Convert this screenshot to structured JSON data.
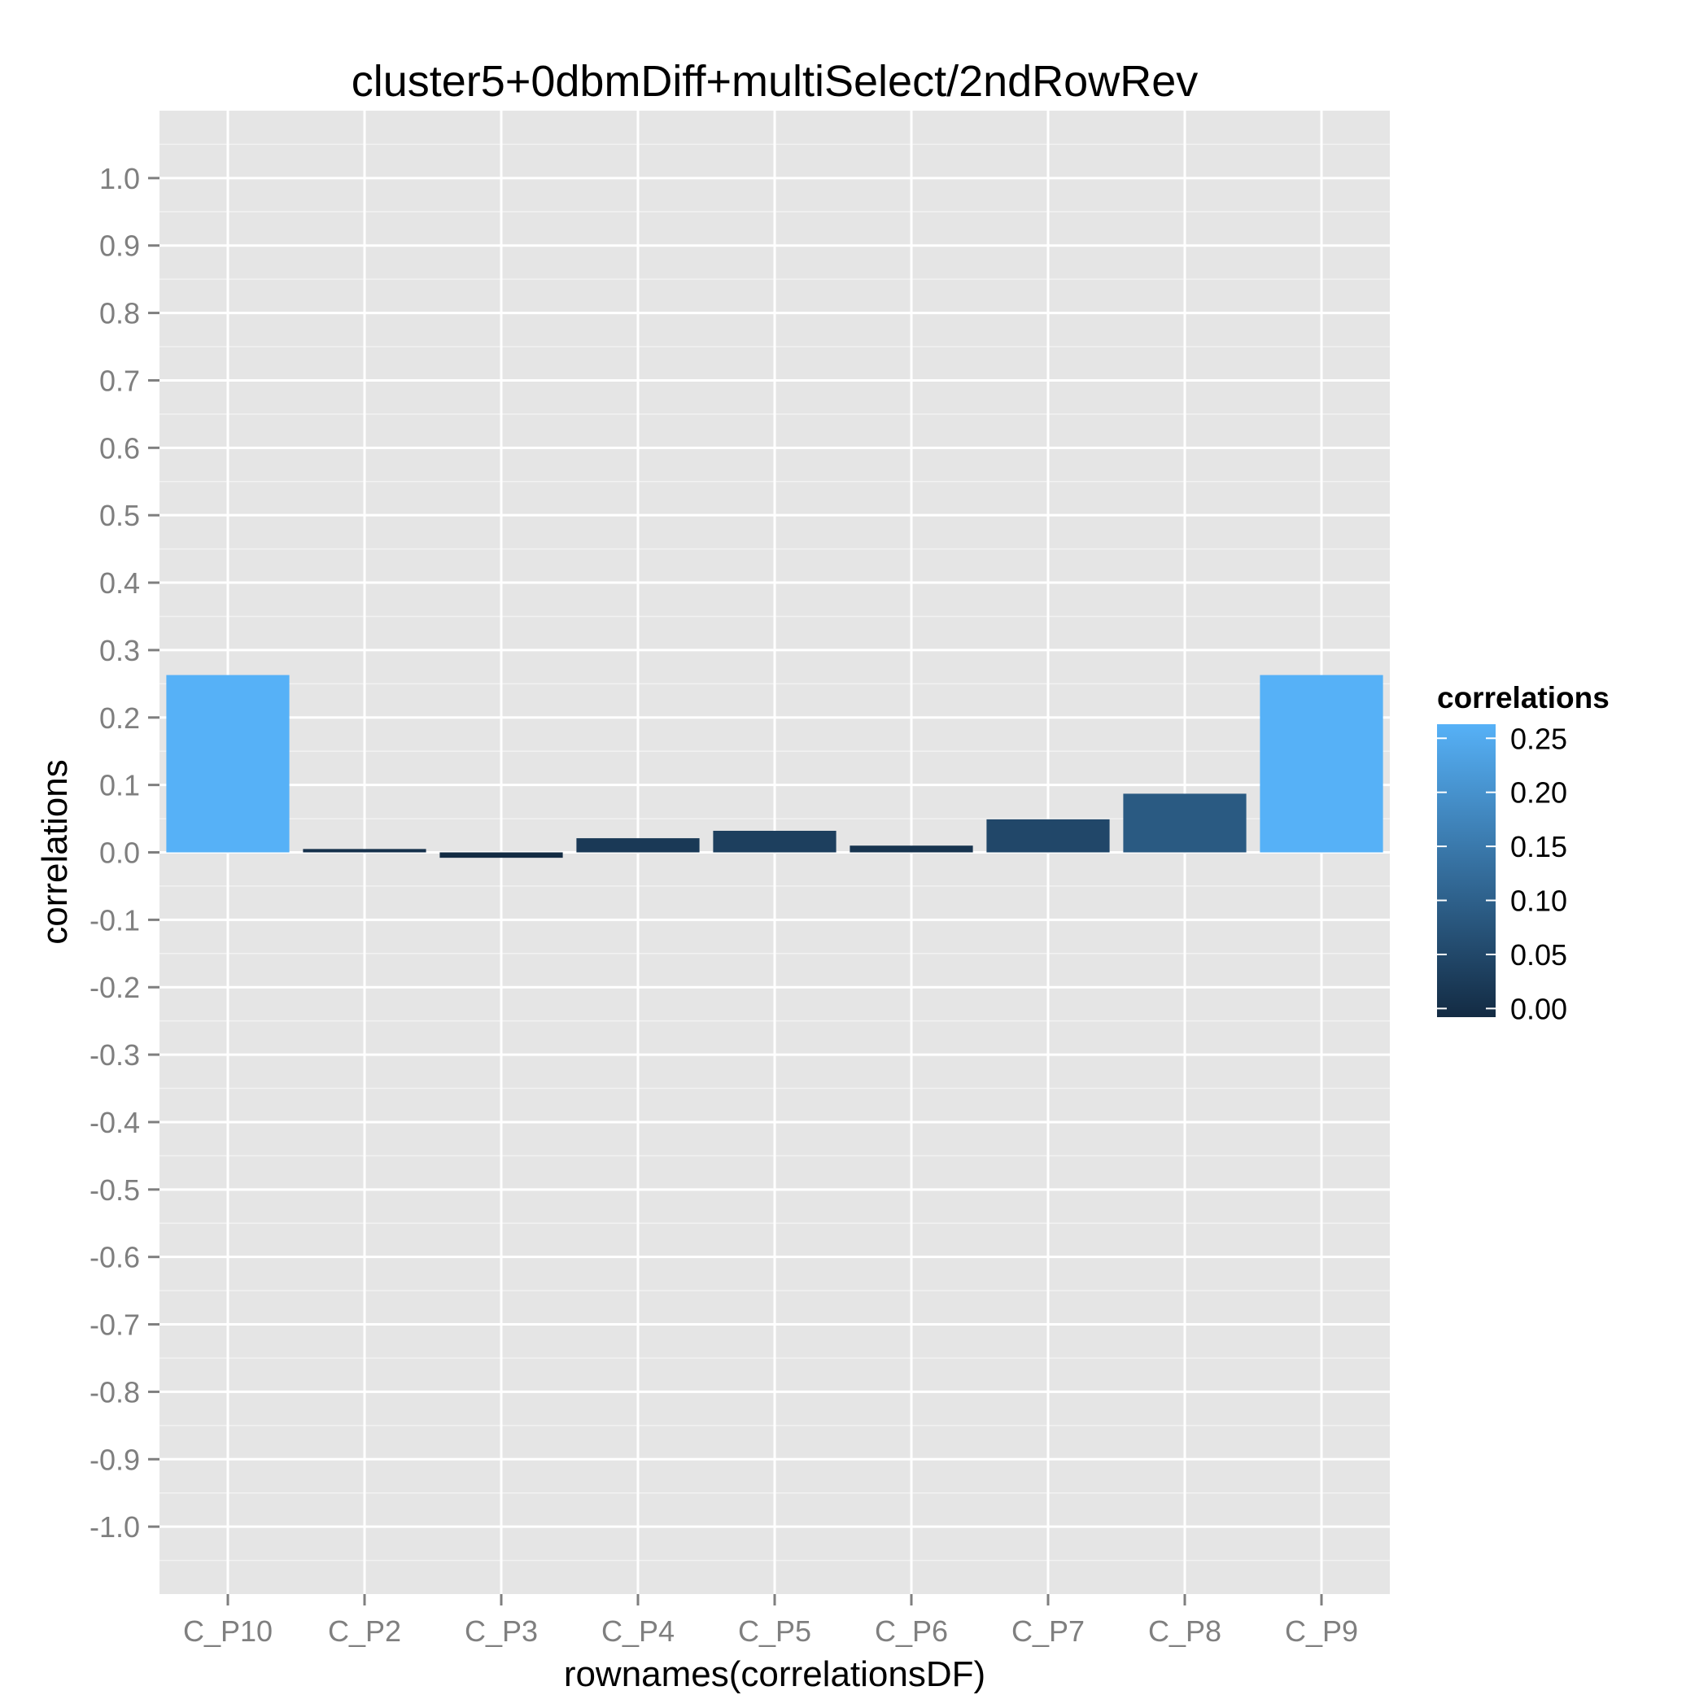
{
  "chart_data": {
    "type": "bar",
    "title": "cluster5+0dbmDiff+multiSelect/2ndRowRev",
    "xlabel": "rownames(correlationsDF)",
    "ylabel": "correlations",
    "categories": [
      "C_P10",
      "C_P2",
      "C_P3",
      "C_P4",
      "C_P5",
      "C_P6",
      "C_P7",
      "C_P8",
      "C_P9"
    ],
    "values": [
      0.263,
      0.005,
      -0.008,
      0.021,
      0.032,
      0.01,
      0.049,
      0.087,
      0.263
    ],
    "ylim": [
      -1.1,
      1.1
    ],
    "yticks": [
      "1.0",
      "0.9",
      "0.8",
      "0.7",
      "0.6",
      "0.5",
      "0.4",
      "0.3",
      "0.2",
      "0.1",
      "0.0",
      "-0.1",
      "-0.2",
      "-0.3",
      "-0.4",
      "-0.5",
      "-0.6",
      "-0.7",
      "-0.8",
      "-0.9",
      "-1.0"
    ],
    "grid": true,
    "legend": {
      "title": "correlations",
      "placement": "right",
      "labels": [
        "0.25",
        "0.20",
        "0.15",
        "0.10",
        "0.05",
        "0.00"
      ],
      "range": [
        -0.008,
        0.263
      ],
      "color_low": "#132B43",
      "color_high": "#56B1F7"
    },
    "colors": {
      "panel_background": "#e5e5e5",
      "grid_major": "#ffffff",
      "grid_minor": "#f2f2f2",
      "tick_text": "#7f7f7f"
    }
  }
}
